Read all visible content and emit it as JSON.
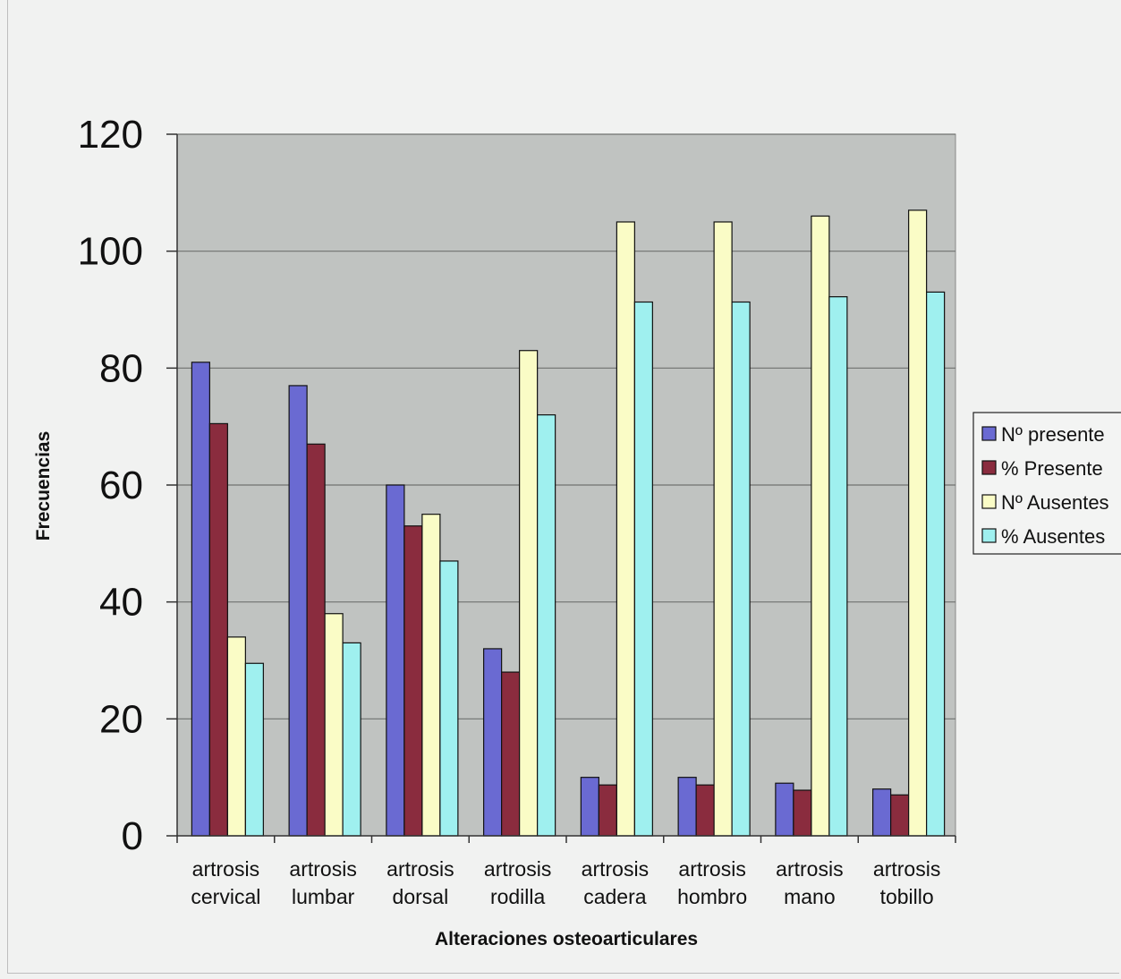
{
  "chart_data": {
    "type": "bar",
    "title": "",
    "xlabel": "Alteraciones osteoarticulares",
    "ylabel": "Frecuencias",
    "ylim": [
      0,
      120
    ],
    "yticks": [
      0,
      20,
      40,
      60,
      80,
      100,
      120
    ],
    "grid": true,
    "legend_position": "right",
    "categories": [
      [
        "artrosis",
        "cervical"
      ],
      [
        "artrosis",
        "lumbar"
      ],
      [
        "artrosis",
        "dorsal"
      ],
      [
        "artrosis",
        "rodilla"
      ],
      [
        "artrosis",
        "cadera"
      ],
      [
        "artrosis",
        "hombro"
      ],
      [
        "artrosis",
        "mano"
      ],
      [
        "artrosis",
        "tobillo"
      ]
    ],
    "series": [
      {
        "name": "Nº presente",
        "color": "#6a6ad2",
        "values": [
          81,
          77,
          60,
          32,
          10,
          10,
          9,
          8
        ]
      },
      {
        "name": "% Presente",
        "color": "#8a2c3e",
        "values": [
          70.5,
          67,
          53,
          28,
          8.7,
          8.7,
          7.8,
          7
        ]
      },
      {
        "name": "Nº Ausentes",
        "color": "#fafcc6",
        "values": [
          34,
          38,
          55,
          83,
          105,
          105,
          106,
          107
        ]
      },
      {
        "name": "% Ausentes",
        "color": "#9ff0ef",
        "values": [
          29.5,
          33,
          47,
          72,
          91.3,
          91.3,
          92.2,
          93
        ]
      }
    ],
    "plot_background": "#c0c3c1",
    "gridline_color": "#6f7270"
  }
}
